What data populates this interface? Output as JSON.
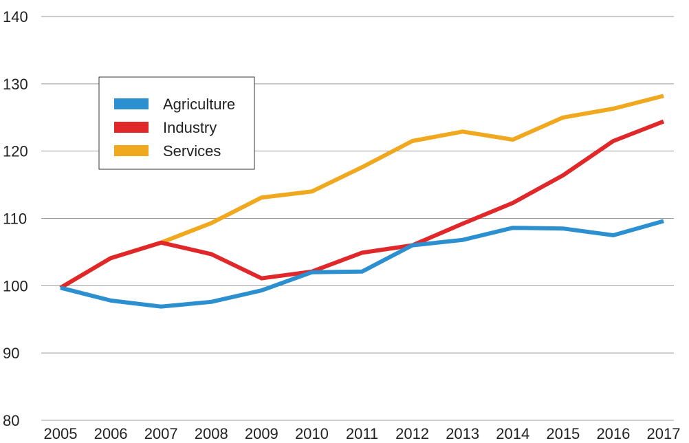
{
  "chart_data": {
    "type": "line",
    "x": [
      "2005",
      "2006",
      "2007",
      "2008",
      "2009",
      "2010",
      "2011",
      "2012",
      "2013",
      "2014",
      "2015",
      "2016",
      "2017"
    ],
    "ylim": [
      80,
      140
    ],
    "yticks": [
      80,
      90,
      100,
      110,
      120,
      130,
      140
    ],
    "grid": true,
    "legend_position": "top-left",
    "series": [
      {
        "name": "Agriculture",
        "color": "#2b8fd0",
        "values": [
          99.7,
          97.8,
          96.9,
          97.6,
          99.3,
          102.0,
          102.1,
          106.0,
          106.8,
          108.6,
          108.5,
          107.5,
          109.6
        ]
      },
      {
        "name": "Industry",
        "color": "#e0282b",
        "values": [
          99.7,
          104.1,
          106.4,
          104.7,
          101.1,
          102.1,
          104.9,
          106.0,
          109.2,
          112.3,
          116.4,
          121.5,
          124.4
        ]
      },
      {
        "name": "Services",
        "color": "#f0a81f",
        "values": [
          99.7,
          104.1,
          106.4,
          109.3,
          113.1,
          114.0,
          117.6,
          121.5,
          122.9,
          121.7,
          125.0,
          126.3,
          128.2
        ]
      }
    ]
  }
}
